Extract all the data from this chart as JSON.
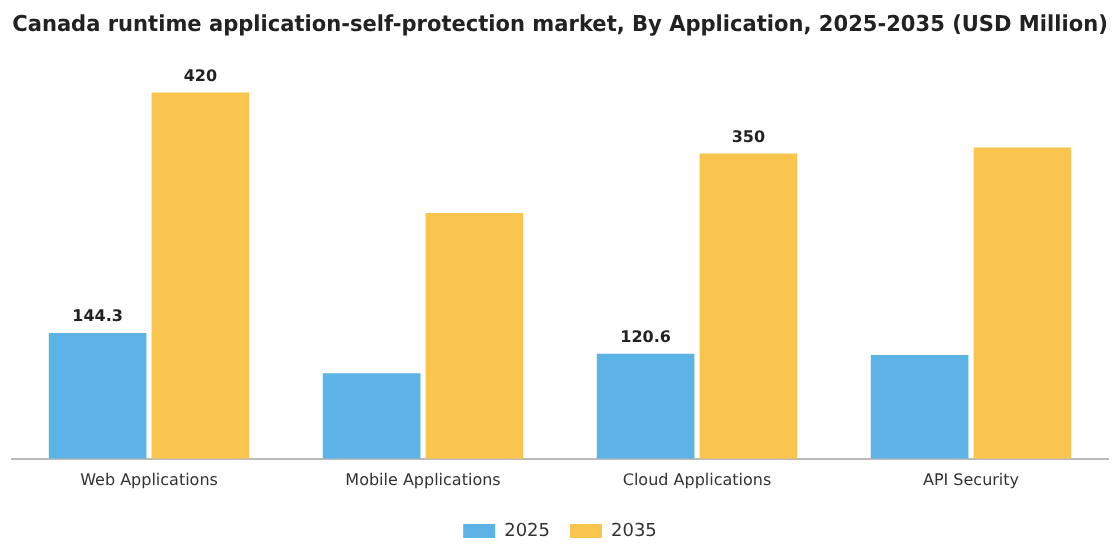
{
  "chart_data": {
    "type": "bar",
    "title": "Canada runtime application-self-protection market, By Application, 2025-2035 (USD Million)",
    "categories": [
      "Web Applications",
      "Mobile Applications",
      "Cloud Applications",
      "API Security"
    ],
    "series": [
      {
        "name": "2025",
        "color": "#5bb4e5",
        "values": [
          144.3,
          98,
          120.6,
          119
        ],
        "value_labels": [
          "144.3",
          null,
          "120.6",
          null
        ]
      },
      {
        "name": "2035",
        "color": "#f9c54e",
        "values": [
          420,
          282,
          350,
          357
        ],
        "value_labels": [
          "420",
          null,
          "350",
          null
        ]
      }
    ],
    "legend": "bottom",
    "grid": false
  }
}
